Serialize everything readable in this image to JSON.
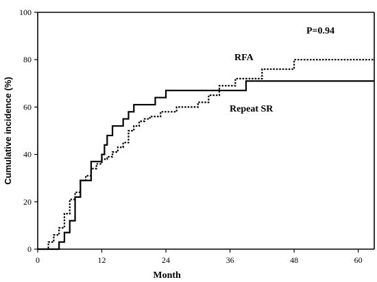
{
  "chart_data": {
    "type": "line",
    "xlabel": "Month",
    "ylabel": "Cumulative incidence (%)",
    "xlim": [
      0,
      63
    ],
    "ylim": [
      0,
      100
    ],
    "xticks": [
      0,
      12,
      24,
      36,
      48,
      60
    ],
    "yticks": [
      0,
      20,
      40,
      60,
      80,
      100
    ],
    "grid": false,
    "annotations": [
      {
        "text": "P=0.94"
      },
      {
        "text": "RFA"
      },
      {
        "text": "Repeat SR"
      }
    ],
    "series": [
      {
        "name": "Repeat SR",
        "style": "solid",
        "step": true,
        "x": [
          0,
          4,
          5,
          6,
          7,
          8,
          10,
          12,
          12.5,
          13,
          14,
          16,
          17,
          18,
          20,
          22,
          24,
          33,
          36,
          39,
          63
        ],
        "y": [
          0,
          3,
          7,
          12,
          22,
          29,
          37,
          40,
          44,
          48,
          52,
          55,
          58,
          61,
          61,
          64,
          67,
          67,
          67,
          71,
          71
        ]
      },
      {
        "name": "RFA",
        "style": "dotted",
        "step": true,
        "x": [
          1,
          2,
          3,
          4,
          5,
          6,
          7,
          8,
          9,
          10,
          11,
          12,
          13,
          14,
          15,
          16,
          17,
          18,
          19,
          20,
          21,
          23,
          26,
          30,
          32,
          34,
          37,
          42,
          48,
          63
        ],
        "y": [
          0,
          3,
          6,
          9,
          15,
          21,
          24,
          29,
          31,
          34,
          36,
          38,
          39,
          41,
          43,
          45,
          50,
          52,
          54,
          55,
          56,
          58,
          60,
          62,
          65,
          69,
          72,
          76,
          80,
          80
        ]
      }
    ]
  }
}
